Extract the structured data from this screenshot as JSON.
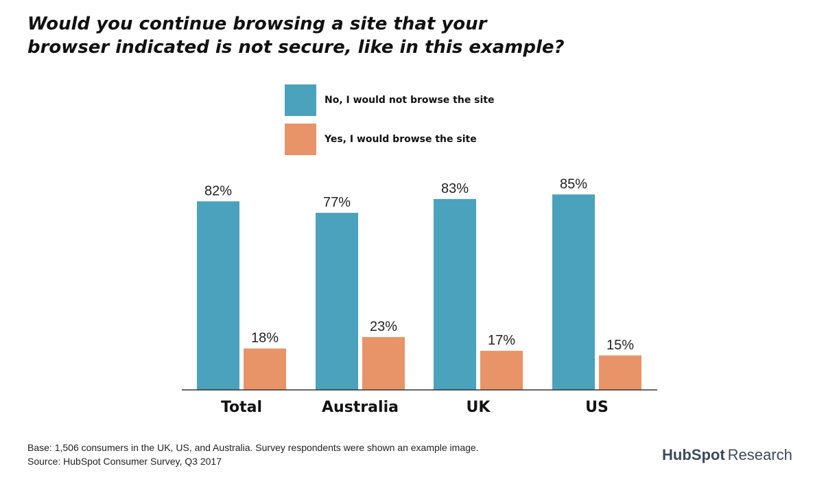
{
  "title_line1": "Would you continue browsing a site that your",
  "title_line2": "browser indicated is not secure, like in this example?",
  "colors": {
    "no": "#4aa2bc",
    "yes": "#e89468",
    "axis": "#333333"
  },
  "chart_data": {
    "type": "bar",
    "categories": [
      "Total",
      "Australia",
      "UK",
      "US"
    ],
    "series": [
      {
        "name": "No, I would not browse the site",
        "values": [
          82,
          77,
          83,
          85
        ],
        "labels": [
          "82%",
          "77%",
          "83%",
          "85%"
        ]
      },
      {
        "name": "Yes, I would browse the site",
        "values": [
          18,
          23,
          17,
          15
        ],
        "labels": [
          "18%",
          "23%",
          "17%",
          "15%"
        ]
      }
    ],
    "ylim": [
      0,
      100
    ],
    "grid": false,
    "legend": "top"
  },
  "footnote_line1": "Base: 1,506 consumers in the UK, US, and Australia. Survey respondents were shown an example image.",
  "footnote_line2": "Source: HubSpot Consumer Survey, Q3 2017",
  "brand_name": "HubSpot",
  "brand_suffix": "Research"
}
